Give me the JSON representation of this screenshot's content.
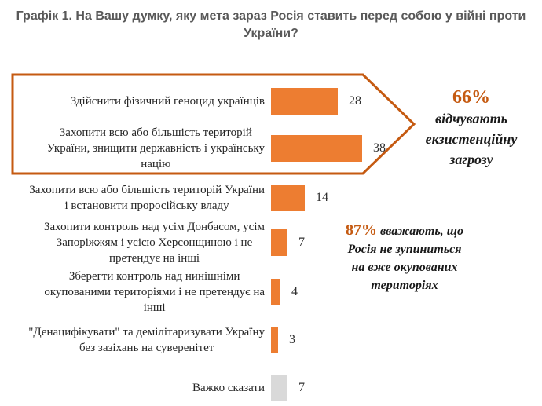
{
  "title": "Графік 1. На Вашу думку, яку мета зараз Росія ставить перед собою у війні проти\nУкраїни?",
  "colors": {
    "bar_orange": "#ED7D31",
    "bar_gray": "#D9D9D9",
    "arrow_outline": "#C55A11",
    "percent": "#C55A11",
    "title_text": "#595959",
    "label_text": "#262626"
  },
  "chart_data": {
    "type": "bar",
    "orientation": "horizontal",
    "title": "Графік 1. На Вашу думку, яку мета зараз Росія ставить перед собою у війні проти України?",
    "categories": [
      "Здійснити фізичний геноцид українців",
      "Захопити всю або більшість територій\nУкраїни, знищити державність і українську\nнацію",
      "Захопити всю або більшість територій України\nі встановити проросійську владу",
      "Захопити контроль над усім Донбасом, усім\nЗапоріжжям і усією Херсонщиною і не\nпретендує на інші",
      "Зберегти контроль над нинішніми\nокупованими територіями і не претендує на\nінші",
      "\"Денацифікувати\" та демілітаризувати Україну\nбез зазіхань на суверенітет",
      "Важко сказати"
    ],
    "values": [
      28,
      38,
      14,
      7,
      4,
      3,
      7
    ],
    "bar_colors": [
      "#ED7D31",
      "#ED7D31",
      "#ED7D31",
      "#ED7D31",
      "#ED7D31",
      "#ED7D31",
      "#D9D9D9"
    ],
    "xlim": [
      0,
      40
    ],
    "value_labels_shown": true,
    "grid": false,
    "legend": false,
    "highlight_group": {
      "rows": [
        0,
        1
      ],
      "shape": "right-pointing-arrow-outline"
    }
  },
  "annotations": {
    "existential": {
      "percent": "66%",
      "text": "відчувають\nекзистенційну\nзагрозу"
    },
    "occupied": {
      "percent": "87%",
      "text": "вважають, що\nРосія не зупиниться\nна вже окупованих\nтериторіях"
    }
  }
}
